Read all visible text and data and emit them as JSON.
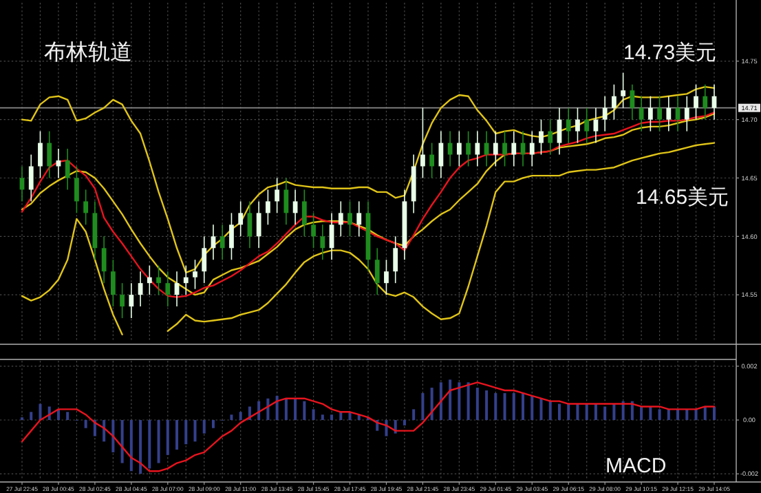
{
  "chart_data": [
    {
      "type": "candlestick",
      "title": "布林轨道",
      "annotations": [
        "14.73美元",
        "14.65美元"
      ],
      "categories": [
        null,
        null,
        null,
        null,
        null,
        null,
        null,
        null,
        null,
        null,
        null,
        null,
        null,
        null,
        null,
        null,
        null,
        null,
        null,
        null,
        null,
        null,
        null,
        null,
        null,
        null,
        null,
        null,
        null,
        null,
        null,
        null,
        null,
        null,
        null,
        null,
        null,
        null,
        null,
        null,
        null,
        null,
        null,
        null,
        null,
        null,
        null,
        null,
        null,
        null,
        null,
        null,
        null,
        null,
        null,
        null,
        null,
        null,
        null,
        null,
        null,
        null,
        null,
        null,
        null,
        null,
        null,
        null,
        null,
        null,
        null,
        null,
        null,
        null,
        null,
        null,
        null
      ],
      "ohlc": [
        [
          14.65,
          14.66,
          14.63,
          14.64
        ],
        [
          14.64,
          14.67,
          14.63,
          14.66
        ],
        [
          14.66,
          14.69,
          14.65,
          14.68
        ],
        [
          14.68,
          14.69,
          14.65,
          14.66
        ],
        [
          14.66,
          14.675,
          14.65,
          14.665
        ],
        [
          14.665,
          14.675,
          14.64,
          14.65
        ],
        [
          14.65,
          14.66,
          14.62,
          14.63
        ],
        [
          14.63,
          14.64,
          14.61,
          14.62
        ],
        [
          14.62,
          14.63,
          14.58,
          14.59
        ],
        [
          14.59,
          14.6,
          14.56,
          14.57
        ],
        [
          14.57,
          14.58,
          14.54,
          14.55
        ],
        [
          14.55,
          14.56,
          14.53,
          14.54
        ],
        [
          14.54,
          14.56,
          14.53,
          14.55
        ],
        [
          14.55,
          14.57,
          14.54,
          14.56
        ],
        [
          14.56,
          14.575,
          14.55,
          14.565
        ],
        [
          14.565,
          14.575,
          14.55,
          14.56
        ],
        [
          14.56,
          14.57,
          14.54,
          14.55
        ],
        [
          14.55,
          14.57,
          14.54,
          14.56
        ],
        [
          14.56,
          14.575,
          14.55,
          14.565
        ],
        [
          14.565,
          14.58,
          14.555,
          14.57
        ],
        [
          14.57,
          14.6,
          14.56,
          14.59
        ],
        [
          14.59,
          14.61,
          14.58,
          14.6
        ],
        [
          14.6,
          14.61,
          14.58,
          14.59
        ],
        [
          14.59,
          14.62,
          14.58,
          14.61
        ],
        [
          14.61,
          14.63,
          14.6,
          14.62
        ],
        [
          14.62,
          14.63,
          14.59,
          14.6
        ],
        [
          14.6,
          14.63,
          14.59,
          14.62
        ],
        [
          14.62,
          14.64,
          14.61,
          14.63
        ],
        [
          14.63,
          14.65,
          14.62,
          14.64
        ],
        [
          14.64,
          14.65,
          14.61,
          14.62
        ],
        [
          14.62,
          14.64,
          14.61,
          14.63
        ],
        [
          14.63,
          14.64,
          14.6,
          14.61
        ],
        [
          14.61,
          14.62,
          14.59,
          14.6
        ],
        [
          14.6,
          14.61,
          14.58,
          14.59
        ],
        [
          14.59,
          14.62,
          14.58,
          14.61
        ],
        [
          14.61,
          14.63,
          14.6,
          14.62
        ],
        [
          14.62,
          14.63,
          14.6,
          14.61
        ],
        [
          14.61,
          14.63,
          14.6,
          14.62
        ],
        [
          14.62,
          14.63,
          14.57,
          14.58
        ],
        [
          14.58,
          14.59,
          14.55,
          14.56
        ],
        [
          14.56,
          14.58,
          14.55,
          14.57
        ],
        [
          14.57,
          14.6,
          14.56,
          14.59
        ],
        [
          14.59,
          14.64,
          14.58,
          14.63
        ],
        [
          14.63,
          14.67,
          14.62,
          14.66
        ],
        [
          14.66,
          14.71,
          14.65,
          14.67
        ],
        [
          14.67,
          14.68,
          14.65,
          14.66
        ],
        [
          14.66,
          14.69,
          14.65,
          14.68
        ],
        [
          14.68,
          14.69,
          14.66,
          14.67
        ],
        [
          14.67,
          14.69,
          14.66,
          14.68
        ],
        [
          14.68,
          14.69,
          14.66,
          14.67
        ],
        [
          14.67,
          14.69,
          14.66,
          14.68
        ],
        [
          14.68,
          14.69,
          14.66,
          14.67
        ],
        [
          14.67,
          14.69,
          14.66,
          14.68
        ],
        [
          14.68,
          14.69,
          14.66,
          14.67
        ],
        [
          14.67,
          14.69,
          14.66,
          14.68
        ],
        [
          14.68,
          14.69,
          14.66,
          14.67
        ],
        [
          14.67,
          14.69,
          14.66,
          14.68
        ],
        [
          14.68,
          14.7,
          14.67,
          14.69
        ],
        [
          14.69,
          14.7,
          14.67,
          14.68
        ],
        [
          14.68,
          14.71,
          14.67,
          14.7
        ],
        [
          14.7,
          14.71,
          14.68,
          14.69
        ],
        [
          14.69,
          14.71,
          14.68,
          14.7
        ],
        [
          14.7,
          14.71,
          14.68,
          14.69
        ],
        [
          14.69,
          14.71,
          14.68,
          14.7
        ],
        [
          14.7,
          14.72,
          14.69,
          14.71
        ],
        [
          14.71,
          14.73,
          14.7,
          14.72
        ],
        [
          14.72,
          14.74,
          14.71,
          14.725
        ],
        [
          14.725,
          14.73,
          14.7,
          14.71
        ],
        [
          14.71,
          14.72,
          14.69,
          14.7
        ],
        [
          14.7,
          14.72,
          14.69,
          14.71
        ],
        [
          14.71,
          14.72,
          14.69,
          14.7
        ],
        [
          14.7,
          14.72,
          14.69,
          14.71
        ],
        [
          14.71,
          14.72,
          14.69,
          14.7
        ],
        [
          14.7,
          14.72,
          14.69,
          14.71
        ],
        [
          14.71,
          14.73,
          14.7,
          14.72
        ],
        [
          14.72,
          14.73,
          14.7,
          14.71
        ],
        [
          14.71,
          14.73,
          14.7,
          14.72
        ]
      ],
      "colors": [
        "#1e8c1e",
        "#e8ffe8",
        "#e8ffe8",
        "#1e8c1e",
        "#e8ffe8",
        "#1e8c1e",
        "#1e8c1e",
        "#1e8c1e",
        "#1e8c1e",
        "#1e8c1e",
        "#1e8c1e",
        "#1e8c1e",
        "#e8ffe8",
        "#e8ffe8",
        "#e8ffe8",
        "#1e8c1e",
        "#1e8c1e",
        "#e8ffe8",
        "#e8ffe8",
        "#e8ffe8",
        "#e8ffe8",
        "#e8ffe8",
        "#1e8c1e",
        "#e8ffe8",
        "#e8ffe8",
        "#1e8c1e",
        "#e8ffe8",
        "#e8ffe8",
        "#e8ffe8",
        "#1e8c1e",
        "#e8ffe8",
        "#1e8c1e",
        "#1e8c1e",
        "#1e8c1e",
        "#e8ffe8",
        "#e8ffe8",
        "#1e8c1e",
        "#e8ffe8",
        "#1e8c1e",
        "#1e8c1e",
        "#e8ffe8",
        "#e8ffe8",
        "#e8ffe8",
        "#e8ffe8",
        "#e8ffe8",
        "#1e8c1e",
        "#e8ffe8",
        "#1e8c1e",
        "#e8ffe8",
        "#1e8c1e",
        "#e8ffe8",
        "#1e8c1e",
        "#e8ffe8",
        "#1e8c1e",
        "#e8ffe8",
        "#1e8c1e",
        "#e8ffe8",
        "#e8ffe8",
        "#1e8c1e",
        "#e8ffe8",
        "#1e8c1e",
        "#e8ffe8",
        "#1e8c1e",
        "#e8ffe8",
        "#e8ffe8",
        "#e8ffe8",
        "#e8ffe8",
        "#1e8c1e",
        "#1e8c1e",
        "#e8ffe8",
        "#1e8c1e",
        "#e8ffe8",
        "#1e8c1e",
        "#e8ffe8",
        "#e8ffe8",
        "#1e8c1e",
        "#e8ffe8"
      ],
      "series": [
        {
          "type": "line",
          "color": "#e0c419",
          "values": [
            14.7,
            14.699,
            14.713,
            14.719,
            14.72,
            14.717,
            14.699,
            14.701,
            14.706,
            14.71,
            14.717,
            14.713,
            14.699,
            14.688,
            14.664,
            14.638,
            14.615,
            14.59,
            14.569,
            14.572,
            14.584,
            14.592,
            14.598,
            14.606,
            14.612,
            14.627,
            14.636,
            14.642,
            14.644,
            14.647,
            14.644,
            14.643,
            14.642,
            14.642,
            14.641,
            14.641,
            14.641,
            14.642,
            14.642,
            14.638,
            14.638,
            14.633,
            14.635,
            14.656,
            14.679,
            14.697,
            14.71,
            14.717,
            14.721,
            14.72,
            14.708,
            14.699,
            14.688,
            14.69,
            14.691,
            14.688,
            14.686,
            14.685,
            14.687,
            14.69,
            14.693,
            14.695,
            14.699,
            14.701,
            14.703,
            14.708,
            14.717,
            14.72,
            14.719,
            14.719,
            14.719,
            14.72,
            14.721,
            14.722,
            14.726,
            14.728,
            14.727
          ]
        },
        {
          "type": "line",
          "color": "#e0c419",
          "values": [
            14.623,
            14.628,
            14.637,
            14.643,
            14.648,
            14.652,
            14.656,
            14.655,
            14.65,
            14.641,
            14.63,
            14.619,
            14.606,
            14.594,
            14.583,
            14.573,
            14.565,
            14.56,
            14.555,
            14.55,
            14.552,
            14.563,
            14.567,
            14.571,
            14.573,
            14.576,
            14.579,
            14.585,
            14.591,
            14.599,
            14.606,
            14.61,
            14.612,
            14.613,
            14.613,
            14.613,
            14.612,
            14.609,
            14.606,
            14.601,
            14.597,
            14.594,
            14.592,
            14.6,
            14.606,
            14.613,
            14.619,
            14.623,
            14.631,
            14.638,
            14.645,
            14.656,
            14.664,
            14.67,
            14.671,
            14.671,
            14.671,
            14.672,
            14.673,
            14.676,
            14.677,
            14.678,
            14.679,
            14.681,
            14.684,
            14.685,
            14.687,
            14.691,
            14.693,
            14.694,
            14.694,
            14.695,
            14.697,
            14.699,
            14.7,
            14.702,
            14.705
          ]
        },
        {
          "type": "line",
          "color": "#e0c419",
          "values": [
            14.549,
            14.545,
            14.548,
            14.554,
            14.563,
            14.58,
            14.615,
            14.604,
            14.58,
            14.555,
            14.533,
            14.516,
            null,
            null,
            null,
            null,
            14.519,
            14.525,
            14.533,
            14.528,
            14.527,
            14.528,
            14.529,
            14.53,
            14.533,
            14.535,
            14.537,
            14.543,
            14.551,
            14.559,
            14.569,
            14.578,
            14.583,
            14.586,
            14.588,
            14.588,
            14.586,
            14.58,
            14.572,
            14.559,
            14.551,
            14.549,
            14.552,
            14.548,
            14.54,
            14.534,
            14.529,
            14.53,
            14.534,
            14.557,
            14.583,
            14.609,
            14.638,
            14.647,
            14.647,
            14.65,
            14.652,
            14.652,
            14.652,
            14.652,
            14.655,
            14.656,
            14.657,
            14.657,
            14.658,
            14.659,
            14.662,
            14.665,
            14.667,
            14.669,
            14.671,
            14.672,
            14.674,
            14.676,
            14.678,
            14.679,
            14.68
          ]
        },
        {
          "type": "line",
          "color": "#e8141e",
          "values": [
            14.621,
            14.633,
            14.647,
            14.659,
            14.664,
            14.665,
            14.658,
            14.652,
            14.641,
            14.616,
            14.604,
            14.594,
            14.583,
            14.572,
            14.563,
            14.555,
            14.549,
            14.548,
            14.549,
            14.552,
            14.556,
            14.558,
            14.562,
            14.566,
            14.571,
            14.577,
            14.583,
            14.587,
            14.594,
            14.602,
            14.61,
            14.617,
            14.617,
            14.614,
            14.612,
            14.612,
            14.612,
            14.608,
            14.604,
            14.6,
            14.597,
            14.594,
            14.588,
            14.601,
            14.615,
            14.627,
            14.638,
            14.65,
            14.659,
            14.665,
            14.667,
            14.67,
            14.67,
            14.67,
            14.671,
            14.671,
            14.671,
            14.672,
            14.673,
            14.677,
            14.679,
            14.681,
            14.684,
            14.686,
            14.687,
            14.688,
            14.691,
            14.694,
            14.697,
            14.698,
            14.698,
            14.699,
            14.699,
            14.7,
            14.702,
            14.703,
            14.706
          ]
        }
      ],
      "ylim": [
        14.51,
        14.8
      ],
      "yticks": [
        {
          "value": 14.55,
          "label": "14.55"
        },
        {
          "value": 14.6,
          "label": "14.60"
        },
        {
          "value": 14.65,
          "label": "14.65"
        },
        {
          "value": 14.7,
          "label": "14.70"
        },
        {
          "value": 14.75,
          "label": "14.75"
        }
      ],
      "grid": true,
      "tick_labels": "y",
      "ref_lines": [
        {
          "axis": "y",
          "value": 14.71,
          "label": "14.71",
          "color": "#8a8a8a"
        }
      ]
    },
    {
      "type": "bar",
      "title": "MACD",
      "categories": [
        "27 Jul 22:45",
        null,
        null,
        null,
        "28 Jul 00:45",
        null,
        null,
        null,
        "28 Jul 02:45",
        null,
        null,
        null,
        "28 Jul 04:45",
        null,
        null,
        null,
        "28 Jul 07:00",
        null,
        null,
        null,
        "28 Jul 09:00",
        null,
        null,
        null,
        "28 Jul 11:00",
        null,
        null,
        null,
        "28 Jul 13:45",
        null,
        null,
        null,
        "28 Jul 15:45",
        null,
        null,
        null,
        "28 Jul 17:45",
        null,
        null,
        null,
        "28 Jul 19:45",
        null,
        null,
        null,
        "28 Jul 21:45",
        null,
        null,
        null,
        "28 Jul 23:45",
        null,
        null,
        null,
        "29 Jul 01:45",
        null,
        null,
        null,
        "29 Jul 03:45",
        null,
        null,
        null,
        "29 Jul 06:15",
        null,
        null,
        null,
        "29 Jul 08:00",
        null,
        null,
        null,
        "29 Jul 10:15",
        null,
        null,
        null,
        "29 Jul 12:15",
        null,
        null,
        null,
        "29 Jul 14:05"
      ],
      "series": [
        {
          "type": "bar",
          "color": "#34408c",
          "values": [
            0.0001,
            0.0003,
            0.0006,
            0.0005,
            0.0004,
            0.0003,
            0,
            -0.0003,
            -0.0006,
            -0.0008,
            -0.0012,
            -0.0016,
            -0.0019,
            -0.002,
            -0.0018,
            -0.0016,
            -0.0013,
            -0.0011,
            -0.0009,
            -0.0008,
            -0.0005,
            -0.0003,
            0,
            0.0002,
            0.0003,
            0.0005,
            0.0007,
            0.0008,
            0.0009,
            0.0008,
            0.0008,
            0.0007,
            0.0004,
            0.0002,
            0.0002,
            0.0003,
            0.0003,
            0.0002,
            0.0001,
            -0.0004,
            -0.0006,
            -0.0005,
            -0.0002,
            0.0004,
            0.001,
            0.0012,
            0.0014,
            0.0015,
            0.0014,
            0.0014,
            0.0012,
            0.0011,
            0.001,
            0.001,
            0.001,
            0.001,
            0.0009,
            0.0008,
            0.0007,
            0.0006,
            0.0006,
            0.0006,
            0.0006,
            0.0006,
            0.0005,
            0.0006,
            0.0007,
            0.0007,
            0.0005,
            0.0005,
            0.0004,
            0.0004,
            0.0004,
            0.0004,
            0.0004,
            0.0005,
            0.0005
          ]
        },
        {
          "type": "line",
          "color": "#e8141e",
          "values": [
            -0.0008,
            -0.0004,
            0,
            0.0002,
            0.0004,
            0.0004,
            0.0004,
            0.0002,
            -0.0001,
            -0.0003,
            -0.0006,
            -0.001,
            -0.0014,
            -0.0016,
            -0.0019,
            -0.0019,
            -0.0018,
            -0.0016,
            -0.0015,
            -0.0013,
            -0.0012,
            -0.0009,
            -0.0006,
            -0.0004,
            -0.0001,
            0.0001,
            0.0003,
            0.0005,
            0.0007,
            0.0008,
            0.0008,
            0.0008,
            0.0007,
            0.0006,
            0.0004,
            0.0003,
            0.0003,
            0.0002,
            0.0001,
            -0.0001,
            -0.0002,
            -0.0004,
            -0.0004,
            -0.0004,
            -0.0001,
            0.0003,
            0.0007,
            0.0011,
            0.0012,
            0.0013,
            0.0014,
            0.0013,
            0.0012,
            0.0011,
            0.0011,
            0.001,
            0.0009,
            0.0008,
            0.0007,
            0.0007,
            0.0006,
            0.0006,
            0.0006,
            0.0006,
            0.0006,
            0.0006,
            0.0006,
            0.0006,
            0.0005,
            0.0005,
            0.0005,
            0.0004,
            0.0004,
            0.0004,
            0.0004,
            0.0005,
            0.0005
          ]
        }
      ],
      "ylim": [
        -0.0022,
        0.0022
      ],
      "yticks": [
        {
          "value": -0.002,
          "label": "-0.002"
        },
        {
          "value": 0,
          "label": "0.00"
        },
        {
          "value": 0.002,
          "label": "0.002"
        }
      ],
      "grid": true
    }
  ]
}
